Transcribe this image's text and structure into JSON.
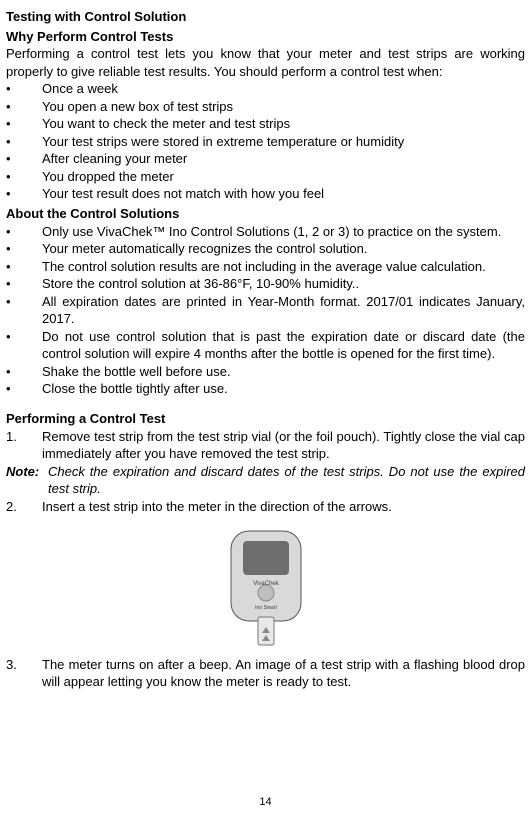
{
  "title": "Testing with Control Solution",
  "why": {
    "heading": "Why Perform Control Tests",
    "intro": "Performing a control test lets you know that your meter and test strips are working properly to give reliable test results. You should perform a control test when:",
    "bullets": [
      "Once a week",
      "You open a new box of test strips",
      "You want to check the meter and test strips",
      "Your test strips were stored in extreme temperature or humidity",
      "After cleaning your meter",
      "You dropped the meter",
      "Your test result does not match with how you feel"
    ]
  },
  "about": {
    "heading": "About the Control Solutions",
    "bullets": [
      "Only use VivaChek™ Ino Control Solutions (1, 2 or 3) to practice on the system.",
      "Your meter automatically recognizes the control solution.",
      "The control solution results are not including in the average value calculation.",
      "Store the control solution at 36-86°F, 10-90% humidity..",
      "All expiration dates are printed in Year-Month format. 2017/01 indicates January, 2017.",
      "Do not use control solution that is past the expiration date or discard date (the control solution will expire 4 months after the bottle is opened for the first time).",
      "Shake the bottle well before use.",
      "Close the bottle tightly after use."
    ]
  },
  "perform": {
    "heading": "Performing a Control Test",
    "step1": "Remove test strip from the test strip vial (or the foil pouch). Tightly close the vial cap immediately after you have removed the test strip.",
    "noteLabel": "Note:",
    "noteText": "Check the expiration and discard dates of the test strips. Do not use the expired test strip.",
    "step2": "Insert a test strip into the meter in the direction of the arrows.",
    "step3": "The meter turns on after a beep. An image of a test strip with a flashing blood drop will appear letting you know the meter is ready to test."
  },
  "meterImage": {
    "width": 130,
    "height": 130,
    "bodyFill": "#d9d9d9",
    "bodyStroke": "#555555",
    "screenFill": "#6e6e6e",
    "stripFill": "#e8e8e8",
    "stripStroke": "#777777",
    "arrowFill": "#888888",
    "brandText1": "VivaChek",
    "brandText2": "Ino Smart",
    "brandColor": "#3a3a3a"
  },
  "pageNumber": "14"
}
